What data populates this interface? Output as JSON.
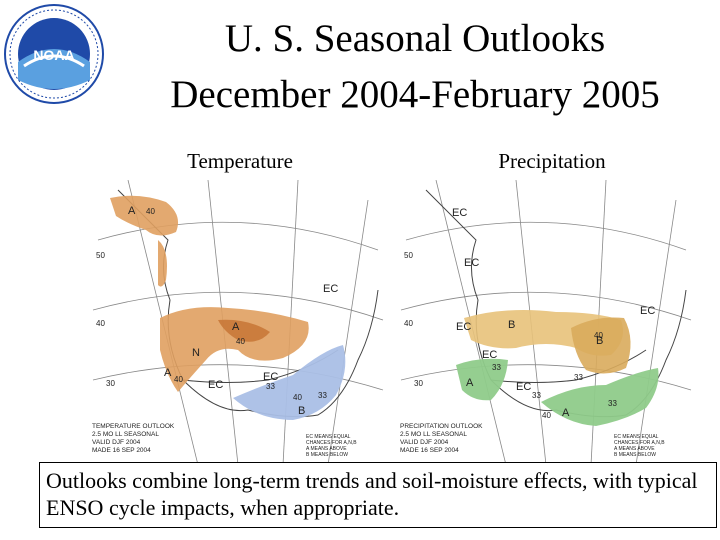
{
  "logo": {
    "text": "NOAA",
    "ring_text": "NATIONAL OCEANIC AND ATMOSPHERIC ADMINISTRATION · U.S. DEPARTMENT OF COMMERCE"
  },
  "title": {
    "line1": "U. S. Seasonal Outlooks",
    "line2": "December 2004-February 2005"
  },
  "panels": {
    "temperature": {
      "label": "Temperature",
      "footer": [
        "TEMPERATURE OUTLOOK",
        "2.5 MO LL SEASONAL",
        "VALID DJF 2004",
        "MADE 16 SEP 2004"
      ],
      "legend": [
        "EC MEANS EQUAL",
        "CHANCES FOR A,N,B",
        "A MEANS ABOVE",
        "B MEANS BELOW"
      ],
      "lat_labels": [
        "50",
        "40",
        "30"
      ],
      "contour_labels": [
        "40",
        "40",
        "40",
        "33",
        "40",
        "33"
      ],
      "class_labels": [
        "A",
        "A",
        "A",
        "EC",
        "EC",
        "EC",
        "B",
        "N"
      ]
    },
    "precipitation": {
      "label": "Precipitation",
      "footer": [
        "PRECIPITATION OUTLOOK",
        "2.5 MO LL SEASONAL",
        "VALID DJF 2004",
        "MADE 16 SEP 2004"
      ],
      "legend": [
        "EC MEANS EQUAL",
        "CHANCES FOR A,N,B",
        "A MEANS ABOVE",
        "B MEANS BELOW"
      ],
      "lat_labels": [
        "50",
        "40",
        "30"
      ],
      "contour_labels": [
        "33",
        "40",
        "33",
        "33",
        "40",
        "33"
      ],
      "class_labels": [
        "EC",
        "EC",
        "B",
        "B",
        "EC",
        "EC",
        "EC",
        "A",
        "A",
        "EC"
      ]
    }
  },
  "caption": "Outlooks combine long-term trends and soil-moisture effects, with typical ENSO cycle impacts, when appropriate.",
  "colors": {
    "above_temp": "#e0a060",
    "above_temp_dark": "#c87838",
    "below_temp": "#aabfe6",
    "below_precip": "#e8c27a",
    "above_precip": "#8fcb8a",
    "grid": "#888888",
    "noaa_blue": "#1f4aa8"
  }
}
